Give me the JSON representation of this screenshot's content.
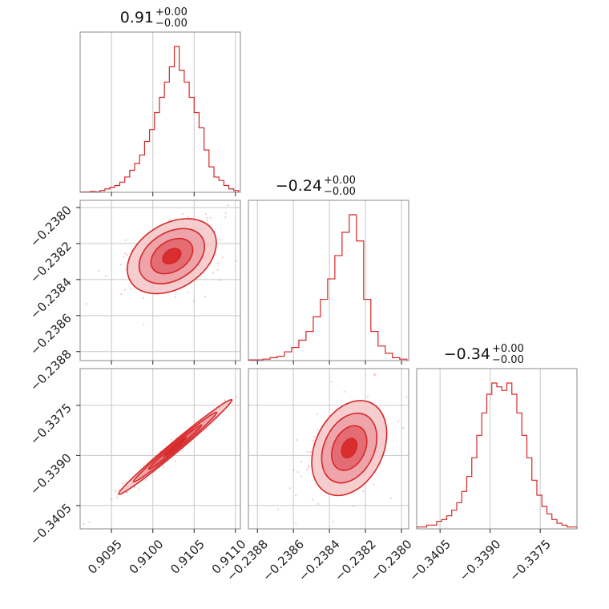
{
  "chart_data": {
    "type": "corner",
    "parameters": [
      "param_0",
      "param_1",
      "param_2"
    ],
    "colors": {
      "accent": "#d62728",
      "fill_light": "#f4c5c8",
      "fill_mid": "#ec9aa0",
      "fill_dark": "#e05b63",
      "grid": "#c7c7c7",
      "frame": "#888888"
    },
    "grid": true,
    "titles": [
      {
        "value": "0.91",
        "upper": "+0.00",
        "lower": "−0.00"
      },
      {
        "value": "−0.24",
        "upper": "+0.00",
        "lower": "−0.00"
      },
      {
        "value": "−0.34",
        "upper": "+0.00",
        "lower": "−0.00"
      }
    ],
    "axes": {
      "p0": {
        "range": [
          0.90912,
          0.91106
        ],
        "ticks": [
          0.9095,
          0.91,
          0.9105,
          0.911
        ],
        "tick_labels": [
          "0.9095",
          "0.9100",
          "0.9105",
          "0.9110"
        ]
      },
      "p1": {
        "range": [
          -0.23885,
          -0.23796
        ],
        "ticks": [
          -0.2388,
          -0.2386,
          -0.2384,
          -0.2382,
          -0.238
        ],
        "tick_labels": [
          "−0.2388",
          "−0.2386",
          "−0.2384",
          "−0.2382",
          "−0.2380"
        ]
      },
      "p2": {
        "range": [
          -0.3412,
          -0.3364
        ],
        "ticks": [
          -0.3405,
          -0.339,
          -0.3375
        ],
        "tick_labels": [
          "−0.3405",
          "−0.3390",
          "−0.3375"
        ]
      }
    },
    "histograms": [
      {
        "param": "p0",
        "bins": [
          0.90912,
          0.90918,
          0.90924,
          0.9093,
          0.90936,
          0.90942,
          0.90948,
          0.90954,
          0.9096,
          0.90966,
          0.90972,
          0.90978,
          0.90984,
          0.9099,
          0.90996,
          0.91002,
          0.91008,
          0.91014,
          0.9102,
          0.91026,
          0.91032,
          0.91038,
          0.91044,
          0.9105,
          0.91056,
          0.91062,
          0.91068,
          0.91074,
          0.9108,
          0.91086,
          0.91092,
          0.91098,
          0.91104
        ],
        "counts": [
          0.2,
          0.2,
          0.5,
          0.3,
          1,
          2,
          3,
          4,
          6,
          9,
          13,
          17,
          22,
          30,
          37,
          47,
          56,
          65,
          74,
          86,
          72,
          65,
          56,
          47,
          38,
          25,
          15,
          9,
          7,
          4,
          2,
          1
        ]
      },
      {
        "param": "p1",
        "bins": [
          -0.23885,
          -0.23881,
          -0.23877,
          -0.23873,
          -0.23869,
          -0.23865,
          -0.23861,
          -0.23857,
          -0.23853,
          -0.23849,
          -0.23845,
          -0.23841,
          -0.23837,
          -0.23833,
          -0.23829,
          -0.23825,
          -0.23821,
          -0.23817,
          -0.23813,
          -0.23809,
          -0.23805,
          -0.23801,
          -0.23797
        ],
        "counts": [
          0.5,
          0.5,
          1,
          2,
          3,
          6,
          9,
          14,
          20,
          30,
          42,
          56,
          72,
          88,
          100,
          82,
          42,
          20,
          10,
          5,
          2,
          1
        ]
      },
      {
        "param": "p2",
        "bins": [
          -0.3412,
          -0.34105,
          -0.3409,
          -0.34075,
          -0.3406,
          -0.34045,
          -0.3403,
          -0.34015,
          -0.34,
          -0.33985,
          -0.3397,
          -0.33955,
          -0.3394,
          -0.33925,
          -0.3391,
          -0.33895,
          -0.3388,
          -0.33865,
          -0.3385,
          -0.33835,
          -0.3382,
          -0.33805,
          -0.3379,
          -0.33775,
          -0.3376,
          -0.33745,
          -0.3373,
          -0.33715,
          -0.337,
          -0.33685,
          -0.3367,
          -0.33655,
          -0.3364
        ],
        "counts": [
          1,
          1,
          2,
          2,
          4,
          5,
          7,
          10,
          14,
          20,
          28,
          38,
          50,
          62,
          72,
          78,
          76,
          74,
          78,
          72,
          62,
          50,
          38,
          26,
          18,
          12,
          8,
          5,
          3,
          2,
          1,
          1
        ]
      }
    ],
    "scatter_panels": [
      {
        "x": "p0",
        "y": "p1",
        "mean": [
          0.91023,
          -0.23827
        ],
        "sd": [
          0.00022,
          8.5e-05
        ],
        "rho": 0.35
      },
      {
        "x": "p0",
        "y": "p2",
        "mean": [
          0.91027,
          -0.33875
        ],
        "sd": [
          0.00028,
          0.00058
        ],
        "rho": 0.99
      },
      {
        "x": "p1",
        "y": "p2",
        "mean": [
          -0.23829,
          -0.33878
        ],
        "sd": [
          8.5e-05,
          0.00058
        ],
        "rho": 0.3
      }
    ]
  }
}
